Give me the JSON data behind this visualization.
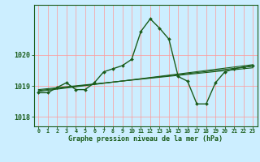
{
  "title": "Graphe pression niveau de la mer (hPa)",
  "bg_color": "#cceeff",
  "grid_color": "#ff9999",
  "line_color": "#1a5c1a",
  "x_labels": [
    "0",
    "1",
    "2",
    "3",
    "4",
    "5",
    "6",
    "7",
    "8",
    "9",
    "10",
    "11",
    "12",
    "13",
    "14",
    "15",
    "16",
    "17",
    "18",
    "19",
    "20",
    "21",
    "22",
    "23"
  ],
  "xlim": [
    -0.5,
    23.5
  ],
  "ylim": [
    1017.7,
    1021.6
  ],
  "yticks": [
    1018,
    1019,
    1020
  ],
  "main_series": {
    "x": [
      0,
      1,
      2,
      3,
      4,
      5,
      6,
      7,
      8,
      9,
      10,
      11,
      12,
      13,
      14,
      15,
      16,
      17,
      18,
      19,
      20,
      21,
      22,
      23
    ],
    "y": [
      1018.78,
      1018.78,
      1018.95,
      1019.1,
      1018.88,
      1018.88,
      1019.1,
      1019.45,
      1019.55,
      1019.65,
      1019.85,
      1020.75,
      1021.15,
      1020.85,
      1020.5,
      1019.3,
      1019.15,
      1018.42,
      1018.42,
      1019.1,
      1019.45,
      1019.55,
      1019.6,
      1019.65
    ]
  },
  "trend_lines": [
    {
      "x": [
        0,
        23
      ],
      "y": [
        1018.88,
        1019.58
      ]
    },
    {
      "x": [
        0,
        23
      ],
      "y": [
        1018.85,
        1019.63
      ]
    },
    {
      "x": [
        0,
        23
      ],
      "y": [
        1018.82,
        1019.68
      ]
    }
  ]
}
